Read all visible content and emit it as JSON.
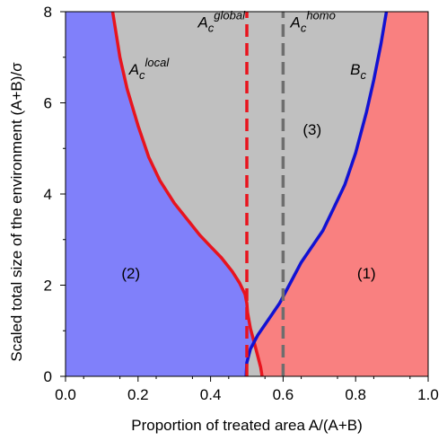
{
  "chart_data": {
    "type": "area",
    "xlabel": "Proportion of treated area  A/(A+B)",
    "ylabel": "Scaled total size of the environment (A+B)/σ",
    "xlim": [
      0.0,
      1.0
    ],
    "ylim": [
      0,
      8
    ],
    "x_ticks": [
      "0.0",
      "0.2",
      "0.4",
      "0.6",
      "0.8",
      "1.0"
    ],
    "y_ticks": [
      "0",
      "2",
      "4",
      "6",
      "8"
    ],
    "x_tick_values": [
      0.0,
      0.2,
      0.4,
      0.6,
      0.8,
      1.0
    ],
    "y_tick_values": [
      0,
      2,
      4,
      6,
      8
    ],
    "grid": false,
    "regions": [
      {
        "label": "(1)",
        "color": "#f98080",
        "label_at": [
          0.83,
          2.15
        ]
      },
      {
        "label": "(2)",
        "color": "#8080fa",
        "label_at": [
          0.18,
          2.15
        ]
      },
      {
        "label": "(3)",
        "color": "#c0c0c0",
        "label_at": [
          0.68,
          5.3
        ]
      }
    ],
    "series": [
      {
        "name": "A_c local",
        "style": "solid",
        "color": "#e8141e",
        "x": [
          0.542,
          0.538,
          0.53,
          0.52,
          0.51,
          0.502,
          0.5,
          0.495,
          0.48,
          0.46,
          0.43,
          0.4,
          0.37,
          0.34,
          0.3,
          0.26,
          0.23,
          0.2,
          0.17,
          0.15,
          0.13
        ],
        "y": [
          0.0,
          0.2,
          0.45,
          0.75,
          1.05,
          1.4,
          1.6,
          1.8,
          2.05,
          2.3,
          2.6,
          2.85,
          3.1,
          3.4,
          3.8,
          4.3,
          4.8,
          5.5,
          6.3,
          7.0,
          8.0
        ]
      },
      {
        "name": "B_c",
        "style": "solid",
        "color": "#1212d2",
        "x": [
          0.498,
          0.5,
          0.51,
          0.53,
          0.56,
          0.59,
          0.62,
          0.65,
          0.68,
          0.71,
          0.74,
          0.77,
          0.8,
          0.83,
          0.85,
          0.87,
          0.885
        ],
        "y": [
          0.0,
          0.3,
          0.6,
          0.9,
          1.25,
          1.6,
          2.05,
          2.5,
          2.85,
          3.2,
          3.7,
          4.2,
          4.9,
          5.8,
          6.5,
          7.3,
          8.0
        ]
      },
      {
        "name": "A_c global",
        "style": "dashed",
        "color": "#e8141e",
        "x": [
          0.5,
          0.5
        ],
        "y": [
          0,
          8
        ]
      },
      {
        "name": "A_c homo",
        "style": "dashed",
        "color": "#6e6e6e",
        "x": [
          0.6,
          0.6
        ],
        "y": [
          0,
          8
        ]
      }
    ],
    "annotations": [
      {
        "base": "A",
        "sub": "c",
        "sup": "global",
        "at": [
          0.365,
          7.66
        ]
      },
      {
        "base": "A",
        "sub": "c",
        "sup": "homo",
        "at": [
          0.62,
          7.66
        ]
      },
      {
        "base": "A",
        "sub": "c",
        "sup": "local",
        "at": [
          0.175,
          6.62
        ]
      },
      {
        "base": "B",
        "sub": "c",
        "sup": "",
        "at": [
          0.785,
          6.62
        ]
      }
    ]
  }
}
